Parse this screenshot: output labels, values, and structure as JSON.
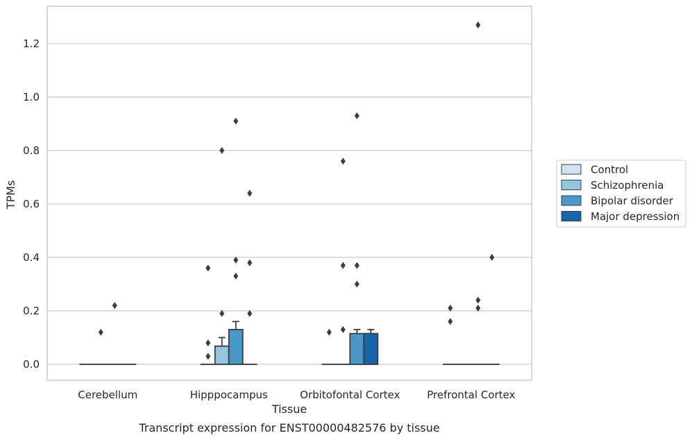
{
  "caption": "Transcript expression for ENST00000482576 by tissue",
  "chart_data": {
    "type": "box",
    "xlabel": "Tissue",
    "ylabel": "TPMs",
    "ylim": [
      -0.06,
      1.34
    ],
    "yticks": [
      "0.0",
      "0.2",
      "0.4",
      "0.6",
      "0.8",
      "1.0",
      "1.2"
    ],
    "ytick_values": [
      0.0,
      0.2,
      0.4,
      0.6,
      0.8,
      1.0,
      1.2
    ],
    "grid": "horizontal",
    "legend_position": "right",
    "categories": [
      "Cerebellum",
      "Hipppocampus",
      "Orbitofontal Cortex",
      "Prefrontal Cortex"
    ],
    "series": [
      {
        "name": "Control",
        "color": "#d0e1f2",
        "boxes": [
          {
            "q1": 0,
            "median": 0,
            "q3": 0,
            "whisker_low": 0,
            "whisker_high": 0,
            "outliers": []
          },
          {
            "q1": 0,
            "median": 0,
            "q3": 0,
            "whisker_low": 0,
            "whisker_high": 0,
            "outliers": [
              0.36,
              0.08,
              0.03
            ]
          },
          {
            "q1": 0,
            "median": 0,
            "q3": 0,
            "whisker_low": 0,
            "whisker_high": 0,
            "outliers": [
              0.12
            ]
          },
          {
            "q1": 0,
            "median": 0,
            "q3": 0,
            "whisker_low": 0,
            "whisker_high": 0,
            "outliers": [
              0.21,
              0.16
            ]
          }
        ]
      },
      {
        "name": "Schizophrenia",
        "color": "#94c4df",
        "boxes": [
          {
            "q1": 0,
            "median": 0,
            "q3": 0,
            "whisker_low": 0,
            "whisker_high": 0,
            "outliers": [
              0.12
            ]
          },
          {
            "q1": 0,
            "median": 0,
            "q3": 0.068,
            "whisker_low": 0,
            "whisker_high": 0.1,
            "outliers": [
              0.8,
              0.19
            ]
          },
          {
            "q1": 0,
            "median": 0,
            "q3": 0,
            "whisker_low": 0,
            "whisker_high": 0,
            "outliers": [
              0.76,
              0.37,
              0.13
            ]
          },
          {
            "q1": 0,
            "median": 0,
            "q3": 0,
            "whisker_low": 0,
            "whisker_high": 0,
            "outliers": []
          }
        ]
      },
      {
        "name": "Bipolar disorder",
        "color": "#4a98c9",
        "boxes": [
          {
            "q1": 0,
            "median": 0,
            "q3": 0,
            "whisker_low": 0,
            "whisker_high": 0,
            "outliers": [
              0.22
            ]
          },
          {
            "q1": 0,
            "median": 0,
            "q3": 0.13,
            "whisker_low": 0,
            "whisker_high": 0.16,
            "outliers": [
              0.91,
              0.39,
              0.33
            ]
          },
          {
            "q1": 0,
            "median": 0,
            "q3": 0.115,
            "whisker_low": 0,
            "whisker_high": 0.13,
            "outliers": [
              0.93,
              0.37,
              0.3
            ]
          },
          {
            "q1": 0,
            "median": 0,
            "q3": 0,
            "whisker_low": 0,
            "whisker_high": 0,
            "outliers": [
              1.27,
              0.24,
              0.21
            ]
          }
        ]
      },
      {
        "name": "Major depression",
        "color": "#1764ab",
        "boxes": [
          {
            "q1": 0,
            "median": 0,
            "q3": 0,
            "whisker_low": 0,
            "whisker_high": 0,
            "outliers": []
          },
          {
            "q1": 0,
            "median": 0,
            "q3": 0,
            "whisker_low": 0,
            "whisker_high": 0,
            "outliers": [
              0.64,
              0.38,
              0.19
            ]
          },
          {
            "q1": 0,
            "median": 0,
            "q3": 0.115,
            "whisker_low": 0,
            "whisker_high": 0.13,
            "outliers": []
          },
          {
            "q1": 0,
            "median": 0,
            "q3": 0,
            "whisker_low": 0,
            "whisker_high": 0,
            "outliers": [
              0.4
            ]
          }
        ]
      }
    ]
  }
}
